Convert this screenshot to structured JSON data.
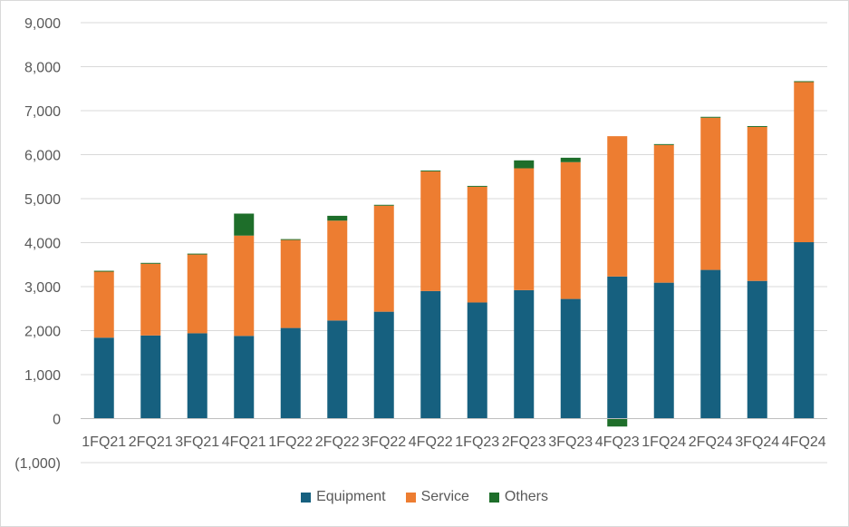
{
  "chart_data": {
    "type": "bar",
    "stacked": true,
    "title": "",
    "xlabel": "",
    "ylabel": "",
    "ylim": [
      -1000,
      9000
    ],
    "y_ticks": [
      {
        "value": 9000,
        "label": "9,000"
      },
      {
        "value": 8000,
        "label": "8,000"
      },
      {
        "value": 7000,
        "label": "7,000"
      },
      {
        "value": 6000,
        "label": "6,000"
      },
      {
        "value": 5000,
        "label": "5,000"
      },
      {
        "value": 4000,
        "label": "4,000"
      },
      {
        "value": 3000,
        "label": "3,000"
      },
      {
        "value": 2000,
        "label": "2,000"
      },
      {
        "value": 1000,
        "label": "1,000"
      },
      {
        "value": 0,
        "label": "0"
      },
      {
        "value": -1000,
        "label": "(1,000)"
      }
    ],
    "grid": true,
    "legend_position": "bottom",
    "categories": [
      "1FQ21",
      "2FQ21",
      "3FQ21",
      "4FQ21",
      "1FQ22",
      "2FQ22",
      "3FQ22",
      "4FQ22",
      "1FQ23",
      "2FQ23",
      "3FQ23",
      "4FQ23",
      "1FQ24",
      "2FQ24",
      "3FQ24",
      "4FQ24"
    ],
    "series": [
      {
        "name": "Equipment",
        "color": "#16607f",
        "values": [
          1840,
          1890,
          1940,
          1880,
          2060,
          2230,
          2430,
          2900,
          2640,
          2920,
          2720,
          3230,
          3090,
          3380,
          3130,
          4010
        ]
      },
      {
        "name": "Service",
        "color": "#ed7d31",
        "values": [
          1500,
          1630,
          1790,
          2280,
          2000,
          2270,
          2410,
          2720,
          2630,
          2770,
          3110,
          3190,
          3130,
          3460,
          3500,
          3640
        ]
      },
      {
        "name": "Others",
        "color": "#1e6e2a",
        "values": [
          20,
          20,
          20,
          500,
          20,
          110,
          20,
          20,
          20,
          180,
          100,
          -180,
          20,
          20,
          20,
          20
        ]
      }
    ]
  }
}
